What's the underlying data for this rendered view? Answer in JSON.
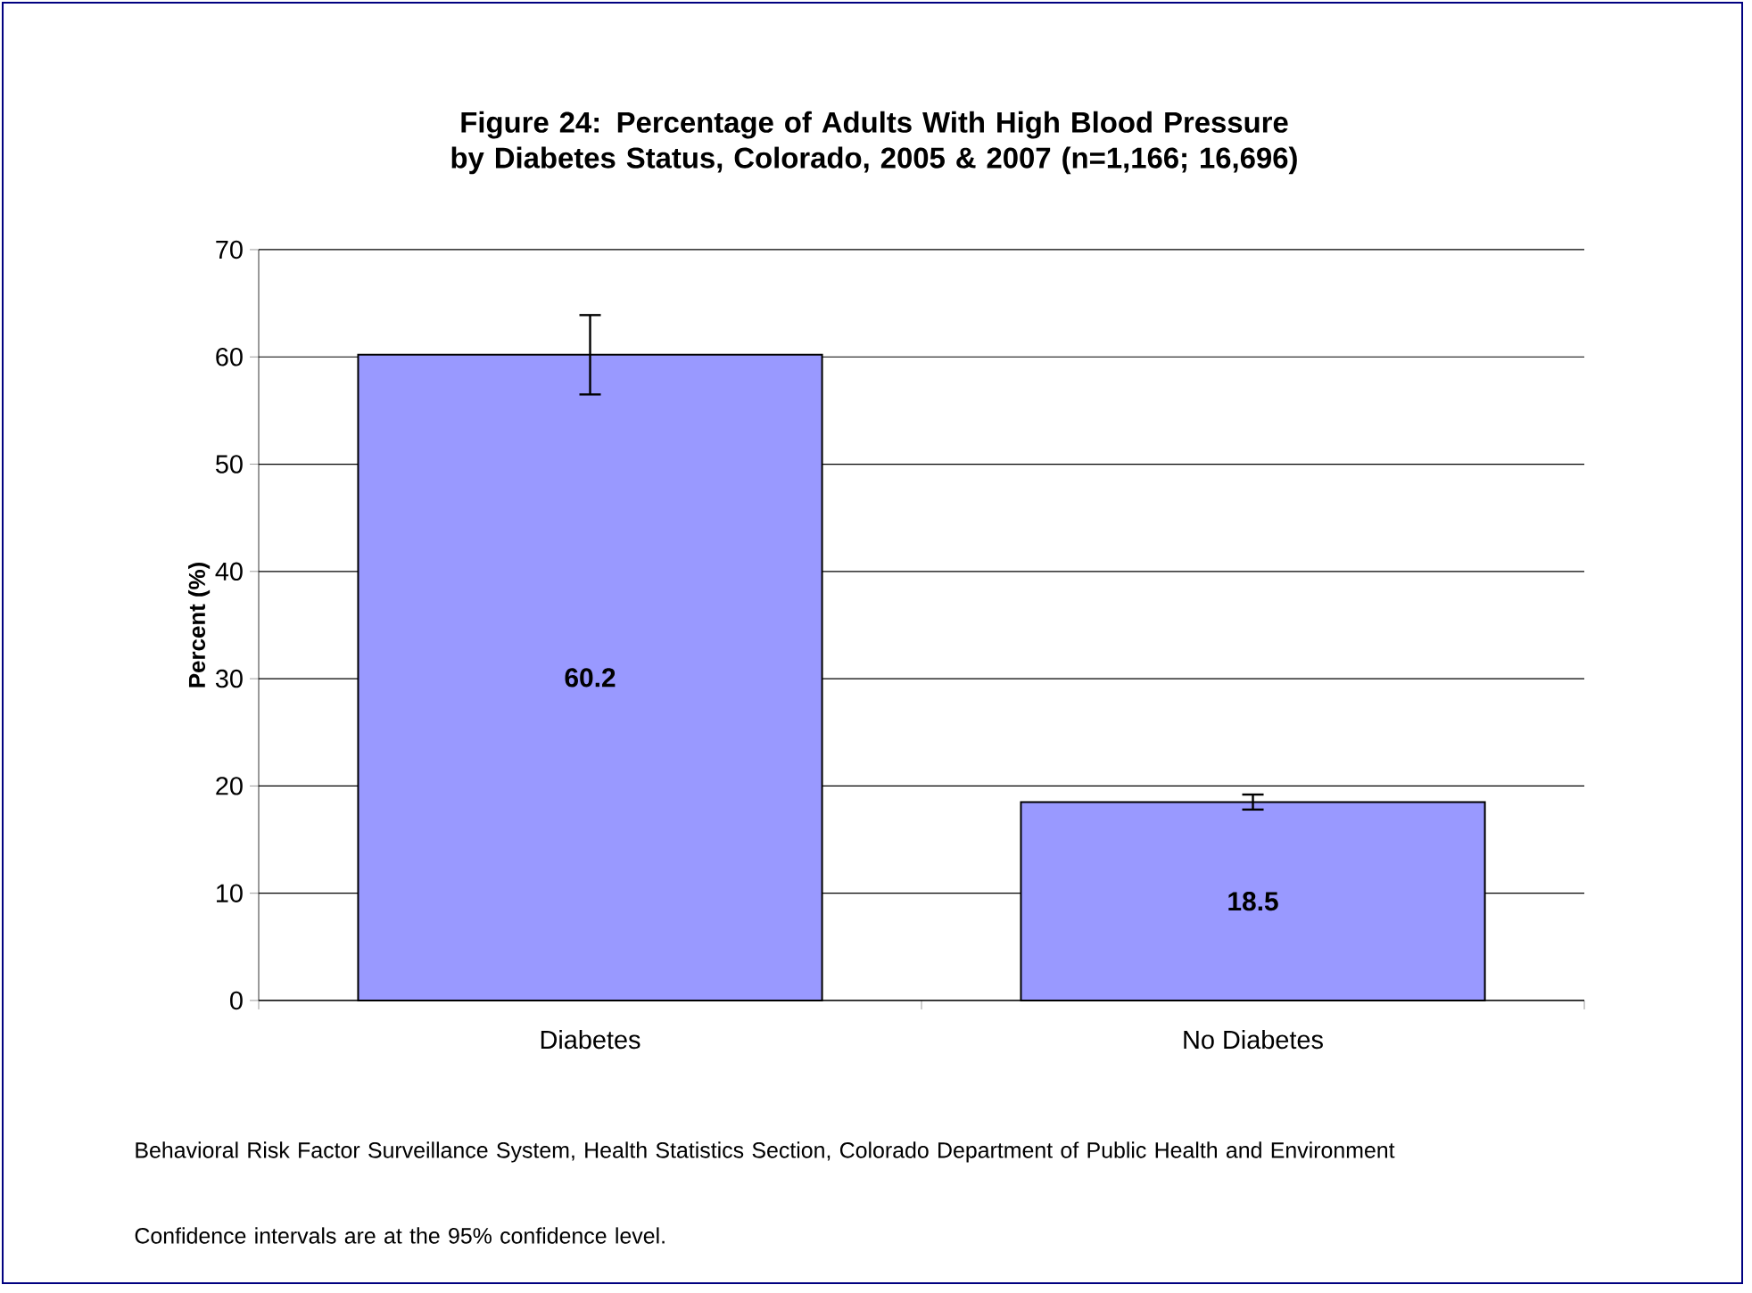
{
  "chart_data": {
    "type": "bar",
    "title": "Figure 24: Percentage of Adults With High Blood Pressure by Diabetes Status, Colorado, 2005 & 2007 (n=1,166; 16,696)",
    "ylabel": "Percent (%)",
    "categories": [
      "Diabetes",
      "No Diabetes"
    ],
    "values": [
      60.2,
      18.5
    ],
    "errors": [
      [
        56.5,
        63.9
      ],
      [
        17.8,
        19.2
      ]
    ],
    "value_labels": [
      "60.2",
      "18.5"
    ],
    "color": "#9999ff",
    "ylim": [
      0,
      70
    ],
    "yticks": [
      0,
      10,
      20,
      30,
      40,
      50,
      60,
      70
    ],
    "grid": "y",
    "annotations": [
      "Behavioral Risk Factor Surveillance System, Health Statistics Section, Colorado Department of Public Health and Environment",
      "Confidence intervals are at the 95% confidence level."
    ]
  }
}
